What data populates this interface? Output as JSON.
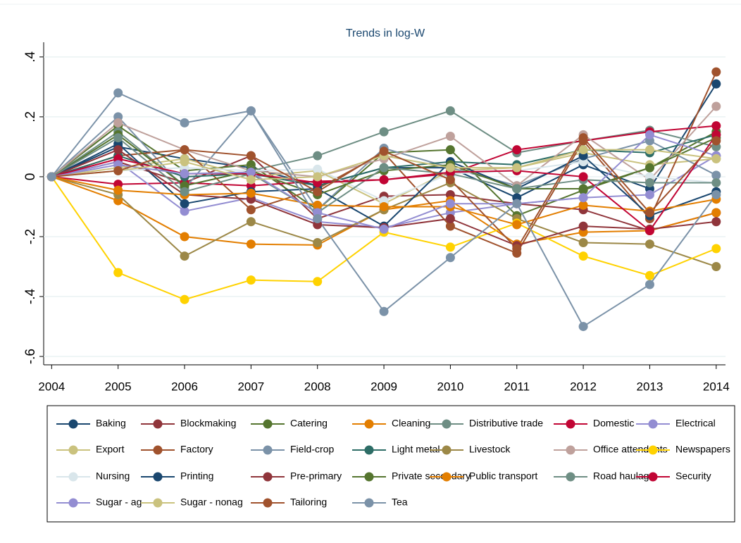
{
  "chart_data": {
    "type": "line",
    "title": "Trends in log-W",
    "x": [
      2004,
      2005,
      2006,
      2007,
      2008,
      2009,
      2010,
      2011,
      2012,
      2013,
      2014
    ],
    "xlim": [
      2003.88,
      2014.14
    ],
    "xticks": [
      2004,
      2005,
      2006,
      2007,
      2008,
      2009,
      2010,
      2011,
      2012,
      2013,
      2014
    ],
    "ylim": [
      -0.628,
      0.449
    ],
    "yticks": [
      {
        "value": -0.6,
        "label": "-.6"
      },
      {
        "value": -0.4,
        "label": "-.4"
      },
      {
        "value": -0.2,
        "label": "-.2"
      },
      {
        "value": 0,
        "label": "0"
      },
      {
        "value": 0.2,
        "label": ".2"
      },
      {
        "value": 0.4,
        "label": ".4"
      }
    ],
    "grid": true,
    "legend": "bottom",
    "series": [
      {
        "name": "Baking",
        "color": "#1a476f",
        "values": [
          0,
          0.1,
          0.06,
          0.03,
          -0.03,
          0.03,
          0.03,
          -0.07,
          0.04,
          -0.04,
          0.31
        ]
      },
      {
        "name": "Blockmaking",
        "color": "#90353b",
        "values": [
          0,
          0.05,
          -0.02,
          0.07,
          -0.14,
          -0.065,
          -0.06,
          -0.09,
          -0.11,
          -0.18,
          -0.12
        ]
      },
      {
        "name": "Catering",
        "color": "#55752f",
        "values": [
          0,
          0.17,
          0.02,
          0.04,
          -0.11,
          0.08,
          0.09,
          -0.13,
          -0.045,
          0.03,
          0.15
        ]
      },
      {
        "name": "Cleaning",
        "color": "#e37e00",
        "values": [
          0,
          -0.08,
          -0.2,
          -0.225,
          -0.228,
          -0.11,
          -0.08,
          -0.225,
          -0.185,
          -0.18,
          -0.12
        ]
      },
      {
        "name": "Distributive trade",
        "color": "#6e8e84",
        "values": [
          0,
          0.15,
          -0.03,
          0.02,
          0.07,
          0.15,
          0.22,
          0.08,
          0.12,
          0.155,
          0.1
        ]
      },
      {
        "name": "Domestic",
        "color": "#c10534",
        "values": [
          0,
          -0.025,
          -0.02,
          -0.03,
          -0.015,
          -0.01,
          0.01,
          0.09,
          0.12,
          0.15,
          0.17
        ]
      },
      {
        "name": "Electrical",
        "color": "#938dd2",
        "values": [
          0,
          0.05,
          -0.115,
          -0.07,
          -0.15,
          -0.17,
          -0.12,
          -0.09,
          -0.07,
          -0.06,
          0.07
        ]
      },
      {
        "name": "Export",
        "color": "#cac27e",
        "values": [
          0,
          0.03,
          0.06,
          0.0,
          0.02,
          -0.09,
          0.02,
          0.03,
          0.08,
          0.04,
          0.06
        ]
      },
      {
        "name": "Factory",
        "color": "#a0522d",
        "values": [
          0,
          0.07,
          0.09,
          -0.11,
          -0.04,
          0.08,
          -0.165,
          -0.255,
          0.12,
          -0.14,
          0.35
        ]
      },
      {
        "name": "Field-crop",
        "color": "#7b92a8",
        "values": [
          0,
          0.2,
          -0.04,
          0.22,
          -0.11,
          0.095,
          0.03,
          -0.03,
          0.06,
          0.12,
          0.005
        ]
      },
      {
        "name": "Light metal",
        "color": "#2d6d66",
        "values": [
          0,
          0.07,
          0.0,
          0.01,
          -0.03,
          0.03,
          0.05,
          0.04,
          0.09,
          0.08,
          0.14
        ]
      },
      {
        "name": "Livestock",
        "color": "#9c8847",
        "values": [
          0,
          -0.06,
          -0.265,
          -0.15,
          -0.22,
          -0.11,
          -0.02,
          -0.14,
          -0.22,
          -0.225,
          -0.3
        ]
      },
      {
        "name": "Office attendants",
        "color": "#bfa19c",
        "values": [
          0,
          0.18,
          0.09,
          0.02,
          0.0,
          0.06,
          0.135,
          -0.03,
          0.14,
          -0.01,
          0.235
        ]
      },
      {
        "name": "Newspapers",
        "color": "#ffd200",
        "values": [
          0,
          -0.32,
          -0.41,
          -0.345,
          -0.35,
          -0.185,
          -0.235,
          -0.155,
          -0.265,
          -0.33,
          -0.24
        ]
      },
      {
        "name": "Nursing",
        "color": "#d9e6eb",
        "values": [
          0,
          0.02,
          0.03,
          0.02,
          0.025,
          -0.08,
          0.01,
          0.02,
          0.05,
          0.0,
          -0.02
        ]
      },
      {
        "name": "Printing",
        "color": "#1a476f",
        "values": [
          0,
          0.11,
          -0.09,
          -0.05,
          -0.04,
          -0.165,
          0.05,
          -0.04,
          0.07,
          -0.13,
          -0.05
        ]
      },
      {
        "name": "Pre-primary",
        "color": "#90353b",
        "values": [
          0,
          0.09,
          -0.06,
          -0.075,
          -0.16,
          -0.17,
          -0.14,
          -0.23,
          -0.165,
          -0.175,
          -0.15
        ]
      },
      {
        "name": "Private secondary",
        "color": "#55752f",
        "values": [
          0,
          0.14,
          -0.03,
          0.02,
          -0.06,
          0.02,
          0.04,
          -0.04,
          -0.04,
          0.03,
          0.13
        ]
      },
      {
        "name": "Public transport",
        "color": "#e37e00",
        "values": [
          0,
          -0.045,
          -0.06,
          -0.055,
          -0.095,
          -0.1,
          -0.1,
          -0.16,
          -0.095,
          -0.115,
          -0.075
        ]
      },
      {
        "name": "Road haulage",
        "color": "#6e8e84",
        "values": [
          0,
          0.13,
          -0.05,
          0.01,
          -0.12,
          0.03,
          0.01,
          -0.04,
          -0.01,
          -0.02,
          -0.02
        ]
      },
      {
        "name": "Security",
        "color": "#c10534",
        "values": [
          0,
          0.06,
          0.01,
          0.01,
          -0.02,
          -0.01,
          0.015,
          0.02,
          0.0,
          -0.18,
          0.14
        ]
      },
      {
        "name": "Sugar - ag",
        "color": "#938dd2",
        "values": [
          0,
          0.04,
          0.01,
          0.015,
          -0.12,
          -0.175,
          -0.09,
          -0.09,
          -0.07,
          0.14,
          0.07
        ]
      },
      {
        "name": "Sugar - nonag",
        "color": "#cac27e",
        "values": [
          0,
          0.02,
          0.05,
          -0.01,
          0.0,
          0.07,
          0.03,
          0.03,
          0.09,
          0.09,
          0.06
        ]
      },
      {
        "name": "Tailoring",
        "color": "#a0522d",
        "values": [
          0,
          0.02,
          0.09,
          0.07,
          -0.05,
          0.085,
          -0.01,
          -0.24,
          0.13,
          -0.12,
          0.12
        ]
      },
      {
        "name": "Tea",
        "color": "#7b92a8",
        "values": [
          0,
          0.28,
          0.18,
          0.22,
          -0.14,
          -0.45,
          -0.27,
          -0.09,
          -0.5,
          -0.36,
          -0.06
        ]
      }
    ]
  }
}
